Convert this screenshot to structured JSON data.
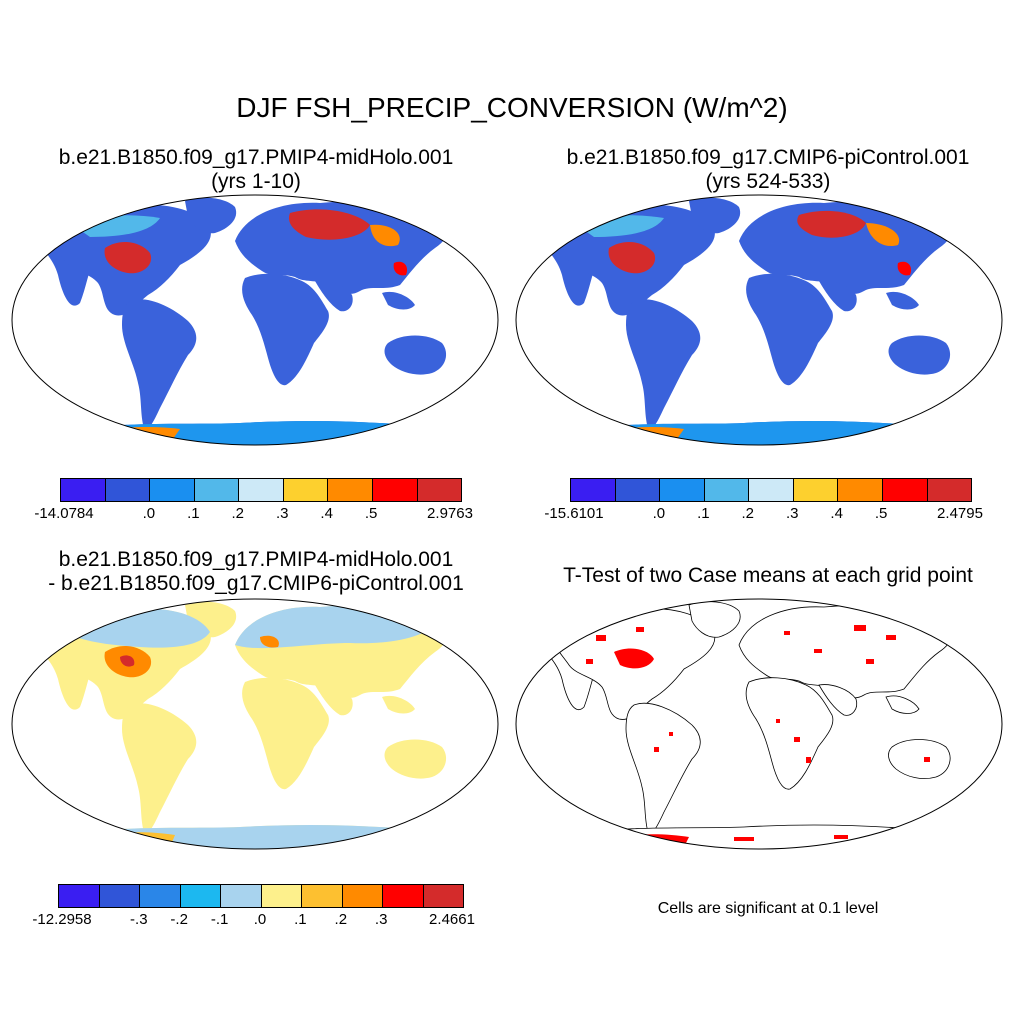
{
  "title": "DJF FSH_PRECIP_CONVERSION (W/m^2)",
  "panels": [
    {
      "line1": "b.e21.B1850.f09_g17.PMIP4-midHolo.001",
      "line2": "(yrs 1-10)"
    },
    {
      "line1": "b.e21.B1850.f09_g17.CMIP6-piControl.001",
      "line2": "(yrs 524-533)"
    },
    {
      "line1": "b.e21.B1850.f09_g17.PMIP4-midHolo.001",
      "line2": "- b.e21.B1850.f09_g17.CMIP6-piControl.001"
    },
    {
      "line1": "T-Test of two Case means at each grid point",
      "line2": ""
    }
  ],
  "colorbars": [
    {
      "colors": [
        "#3a1ef2",
        "#3055d8",
        "#1a8ff0",
        "#52b8ea",
        "#cde9f7",
        "#fdd02e",
        "#ff8a00",
        "#ff0000",
        "#d42b2b"
      ],
      "labels": [
        "-14.0784",
        ".0",
        ".1",
        ".2",
        ".3",
        ".4",
        ".5",
        "2.9763"
      ]
    },
    {
      "colors": [
        "#3a1ef2",
        "#3055d8",
        "#1a8ff0",
        "#52b8ea",
        "#cde9f7",
        "#fdd02e",
        "#ff8a00",
        "#ff0000",
        "#d42b2b"
      ],
      "labels": [
        "-15.6101",
        ".0",
        ".1",
        ".2",
        ".3",
        ".4",
        ".5",
        "2.4795"
      ]
    },
    {
      "colors": [
        "#3a1ef2",
        "#3055d8",
        "#2a86e8",
        "#1cb8f0",
        "#a8d3ee",
        "#fdf08c",
        "#fdc030",
        "#ff8a00",
        "#ff0000",
        "#d42b2b"
      ],
      "labels": [
        "-12.2958",
        "-.3",
        "-.2",
        "-.1",
        ".0",
        ".1",
        ".2",
        ".3",
        "2.4661"
      ]
    }
  ],
  "note": "Cells are significant at 0.1 level"
}
